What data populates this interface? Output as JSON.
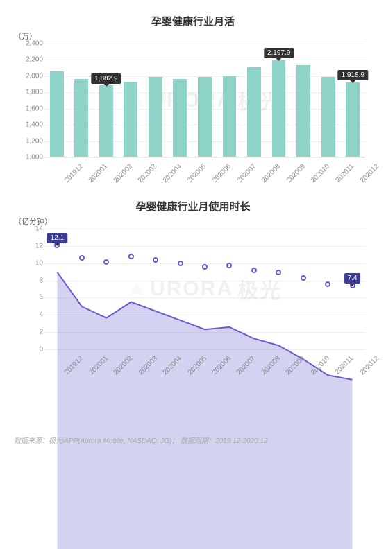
{
  "chart1": {
    "type": "bar",
    "title": "孕婴健康行业月活",
    "y_unit": "（万）",
    "ylim": [
      1000,
      2400
    ],
    "yticks": [
      1000,
      1200,
      1400,
      1600,
      1800,
      2000,
      2200,
      2400
    ],
    "categories": [
      "201912",
      "202001",
      "202002",
      "202003",
      "202004",
      "202005",
      "202006",
      "202007",
      "202008",
      "202009",
      "202010",
      "202011",
      "202012"
    ],
    "values": [
      2060,
      1960,
      1882.9,
      1930,
      1990,
      1960,
      1990,
      2000,
      2110,
      2197.9,
      2130,
      1990,
      1918.9
    ],
    "callouts": [
      {
        "index": 2,
        "label": "1,882.9"
      },
      {
        "index": 9,
        "label": "2,197.9"
      },
      {
        "index": 12,
        "label": "1,918.9"
      }
    ],
    "bar_color": "#8dd3c7",
    "grid_color": "#eeeeee",
    "text_color": "#888888",
    "title_fontsize": 15,
    "tick_fontsize": 10
  },
  "chart2": {
    "type": "area",
    "title": "孕婴健康行业月使用时长",
    "y_unit": "（亿分钟）",
    "ylim": [
      0,
      14
    ],
    "yticks": [
      0,
      2,
      4,
      6,
      8,
      10,
      12,
      14
    ],
    "categories": [
      "201912",
      "202001",
      "202002",
      "202003",
      "202004",
      "202005",
      "202006",
      "202007",
      "202008",
      "202009",
      "202010",
      "202011",
      "202012"
    ],
    "values": [
      12.1,
      10.6,
      10.1,
      10.8,
      10.4,
      10.0,
      9.6,
      9.7,
      9.2,
      8.9,
      8.3,
      7.6,
      7.4
    ],
    "callouts": [
      {
        "index": 0,
        "label": "12.1"
      },
      {
        "index": 12,
        "label": "7.4"
      }
    ],
    "line_color": "#6a5acd",
    "area_color": "rgba(129,125,211,0.35)",
    "marker_fill": "#ffffff",
    "marker_stroke": "#6a5acd",
    "marker_radius": 4,
    "grid_color": "#eeeeee",
    "title_fontsize": 15,
    "tick_fontsize": 10
  },
  "watermark": {
    "text_left": "URORA",
    "text_right": "极光",
    "color": "rgba(0,0,0,0.06)"
  },
  "footer": {
    "text": "数据来源：极光iAPP(Aurora Mobile, NASDAQ: JG)； 数据周期：2019.12-2020.12"
  }
}
